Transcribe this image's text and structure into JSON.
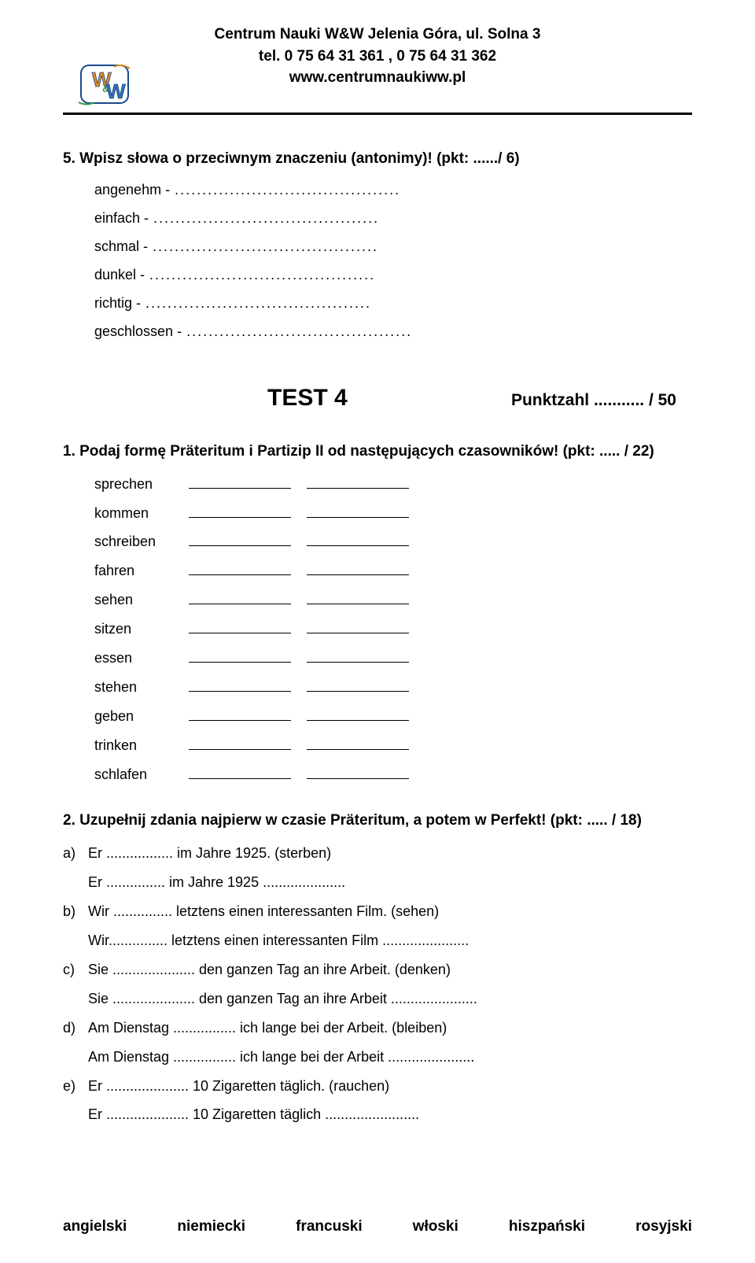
{
  "header": {
    "line1": "Centrum Nauki W&W  Jelenia Góra,  ul. Solna 3",
    "line2": "tel. 0 75 64 31 361 , 0 75 64 31 362",
    "line3": "www.centrumnaukiww.pl"
  },
  "logo": {
    "text_top": "W",
    "text_bottom": "W",
    "amp": "&",
    "colors": {
      "orange": "#e08a2a",
      "blue": "#3b6fb5",
      "green": "#3a9a4a",
      "outline": "#1a4a8a"
    }
  },
  "q5": {
    "title": "5.  Wpisz słowa o przeciwnym znaczeniu (antonimy)! (pkt: ....../ 6)",
    "items": [
      "angenehm -",
      "einfach -",
      "schmal -",
      "dunkel -",
      "richtig -",
      "geschlossen -"
    ],
    "dots": "........................................."
  },
  "test4": {
    "title": "TEST 4",
    "punktzahl": "Punktzahl ........... / 50"
  },
  "q1": {
    "title": "1.  Podaj formę Präteritum i Partizip II od następujących czasowników! (pkt: ..... / 22)",
    "verbs": [
      "sprechen",
      "kommen",
      "schreiben",
      "fahren",
      "sehen",
      "sitzen",
      "essen",
      "stehen",
      "geben",
      "trinken",
      "schlafen"
    ]
  },
  "q2": {
    "title": "2.  Uzupełnij zdania najpierw w czasie Präteritum, a potem w Perfekt! (pkt: ..... / 18)",
    "items": [
      {
        "lbl": "a)",
        "line1": "Er ................. im Jahre 1925. (sterben)",
        "line2": "Er ............... im Jahre 1925 ....................."
      },
      {
        "lbl": "b)",
        "line1": "Wir ............... letztens einen interessanten Film. (sehen)",
        "line2": "Wir............... letztens einen interessanten Film ......................"
      },
      {
        "lbl": "c)",
        "line1": "Sie ..................... den ganzen Tag an ihre Arbeit. (denken)",
        "line2": "Sie ..................... den ganzen Tag an ihre Arbeit ......................"
      },
      {
        "lbl": "d)",
        "line1": "Am Dienstag ................ ich lange bei der Arbeit. (bleiben)",
        "line2": "Am Dienstag ................ ich lange bei der Arbeit ......................"
      },
      {
        "lbl": "e)",
        "line1": "Er ..................... 10 Zigaretten täglich. (rauchen)",
        "line2": "Er ..................... 10 Zigaretten täglich ........................"
      }
    ]
  },
  "footer": {
    "langs": [
      "angielski",
      "niemiecki",
      "francuski",
      "włoski",
      "hiszpański",
      "rosyjski"
    ]
  }
}
